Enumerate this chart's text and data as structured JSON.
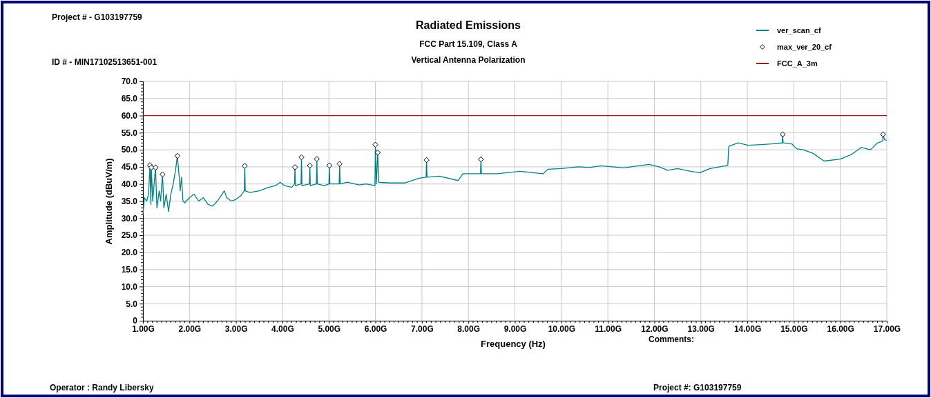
{
  "chart_data": {
    "type": "line",
    "title": "Radiated Emissions",
    "subtitle": "FCC Part 15.109, Class A",
    "xlabel": "Frequency (Hz)",
    "ylabel": "Amplitude (dBuV/m)",
    "annotations": [
      "Vertical Antenna Polarization",
      "Project # - G103197759",
      "ID # - MIN17102513651-001",
      "Comments:",
      "Operator : Randy Libersky",
      "Project #: G103197759"
    ],
    "xlim": [
      1,
      17
    ],
    "ylim": [
      0,
      70
    ],
    "xticks": [
      {
        "value": 1,
        "label": "1.00G"
      },
      {
        "value": 2,
        "label": "2.00G"
      },
      {
        "value": 3,
        "label": "3.00G"
      },
      {
        "value": 4,
        "label": "4.00G"
      },
      {
        "value": 5,
        "label": "5.00G"
      },
      {
        "value": 6,
        "label": "6.00G"
      },
      {
        "value": 7,
        "label": "7.00G"
      },
      {
        "value": 8,
        "label": "8.00G"
      },
      {
        "value": 9,
        "label": "9.00G"
      },
      {
        "value": 10,
        "label": "10.00G"
      },
      {
        "value": 11,
        "label": "11.00G"
      },
      {
        "value": 12,
        "label": "12.00G"
      },
      {
        "value": 13,
        "label": "13.00G"
      },
      {
        "value": 14,
        "label": "14.00G"
      },
      {
        "value": 15,
        "label": "15.00G"
      },
      {
        "value": 16,
        "label": "16.00G"
      },
      {
        "value": 17,
        "label": "17.00G"
      }
    ],
    "yticks": [
      0,
      {
        "value": 5,
        "label": "5.0"
      },
      {
        "value": 10,
        "label": "10.0"
      },
      {
        "value": 15,
        "label": "15.0"
      },
      {
        "value": 20,
        "label": "20.0"
      },
      {
        "value": 25,
        "label": "25.0"
      },
      {
        "value": 30,
        "label": "30.0"
      },
      {
        "value": 35,
        "label": "35.0"
      },
      {
        "value": 40,
        "label": "40.0"
      },
      {
        "value": 45,
        "label": "45.0"
      },
      {
        "value": 50,
        "label": "50.0"
      },
      {
        "value": 55,
        "label": "55.0"
      },
      {
        "value": 60,
        "label": "60.0"
      },
      {
        "value": 65,
        "label": "65.0"
      },
      {
        "value": 70,
        "label": "70.0"
      }
    ],
    "grid": true,
    "legend": "top right",
    "series": [
      {
        "name": "ver_scan_cf",
        "color": "#008080",
        "x": [
          1.0,
          1.03,
          1.08,
          1.12,
          1.15,
          1.17,
          1.18,
          1.21,
          1.24,
          1.27,
          1.3,
          1.35,
          1.38,
          1.42,
          1.45,
          1.5,
          1.55,
          1.6,
          1.65,
          1.7,
          1.74,
          1.78,
          1.8,
          1.83,
          1.86,
          1.9,
          2.0,
          2.1,
          2.2,
          2.3,
          2.4,
          2.5,
          2.6,
          2.7,
          2.75,
          2.8,
          2.9,
          3.0,
          3.1,
          3.18,
          3.19,
          3.2,
          3.3,
          3.5,
          3.7,
          3.85,
          3.95,
          4.05,
          4.2,
          4.26,
          4.27,
          4.28,
          4.4,
          4.41,
          4.42,
          4.58,
          4.59,
          4.6,
          4.73,
          4.74,
          4.75,
          4.9,
          5.0,
          5.01,
          5.02,
          5.22,
          5.23,
          5.24,
          5.4,
          5.65,
          5.8,
          5.99,
          6.0,
          6.02,
          6.05,
          6.07,
          6.3,
          6.64,
          6.94,
          7.09,
          7.1,
          7.11,
          7.38,
          7.78,
          7.88,
          8.26,
          8.27,
          8.28,
          8.62,
          9.11,
          9.61,
          9.71,
          10.0,
          10.36,
          10.6,
          10.85,
          11.1,
          11.35,
          11.6,
          11.89,
          12.1,
          12.29,
          12.5,
          12.78,
          12.98,
          13.2,
          13.53,
          13.58,
          13.6,
          13.8,
          14.02,
          14.3,
          14.52,
          14.75,
          14.76,
          14.77,
          14.96,
          15.06,
          15.2,
          15.41,
          15.65,
          16.0,
          16.25,
          16.45,
          16.65,
          16.8,
          16.91,
          16.92,
          16.95,
          17.0
        ],
        "values": [
          31,
          36,
          35,
          37,
          45.5,
          34,
          44.8,
          35,
          40,
          44.8,
          33,
          38,
          35,
          42.8,
          33,
          37,
          32,
          37,
          40,
          44,
          48.2,
          42,
          38,
          42,
          35,
          34.5,
          36,
          37,
          35,
          36,
          34,
          33.5,
          35,
          37,
          38,
          36,
          35,
          35.5,
          36.5,
          38,
          45.3,
          38,
          37.5,
          38,
          39,
          39.5,
          40.5,
          39.5,
          39,
          40,
          44.9,
          39.5,
          40,
          47.8,
          39.5,
          40,
          45.4,
          39.5,
          40,
          47.3,
          40,
          39.5,
          40,
          45.4,
          40,
          40,
          45.9,
          40,
          40.5,
          39.7,
          40,
          39.5,
          51.5,
          40,
          49.2,
          40.5,
          40.3,
          40.3,
          41.7,
          42,
          47,
          42,
          42.3,
          41,
          43,
          43,
          47.2,
          43,
          43,
          43.7,
          43,
          44.3,
          44.5,
          45,
          44.8,
          45.3,
          45,
          44.7,
          45.2,
          45.7,
          45,
          44,
          44.5,
          43.7,
          43.3,
          44.5,
          45.3,
          45.5,
          51,
          52,
          51.3,
          51.5,
          51.7,
          52,
          54.5,
          52,
          51.7,
          50.3,
          50,
          49,
          46.7,
          47.3,
          48.7,
          50.7,
          50,
          52,
          52.5,
          54.5,
          53,
          52.7
        ]
      },
      {
        "name": "max_ver_20_cf",
        "type": "scatter",
        "marker": "diamond",
        "color": "#000000",
        "x": [
          1.15,
          1.18,
          1.27,
          1.42,
          1.74,
          3.19,
          4.27,
          4.41,
          4.59,
          4.74,
          5.01,
          5.23,
          6.0,
          6.05,
          7.1,
          8.27,
          14.76,
          16.92
        ],
        "values": [
          45.5,
          44.8,
          44.8,
          42.8,
          48.2,
          45.3,
          44.9,
          47.8,
          45.4,
          47.3,
          45.4,
          45.9,
          51.5,
          49.2,
          47.0,
          47.2,
          54.5,
          54.5
        ]
      },
      {
        "name": "FCC_A_3m",
        "color": "#9b1b1b",
        "x": [
          1,
          17
        ],
        "values": [
          60,
          60
        ]
      }
    ]
  }
}
